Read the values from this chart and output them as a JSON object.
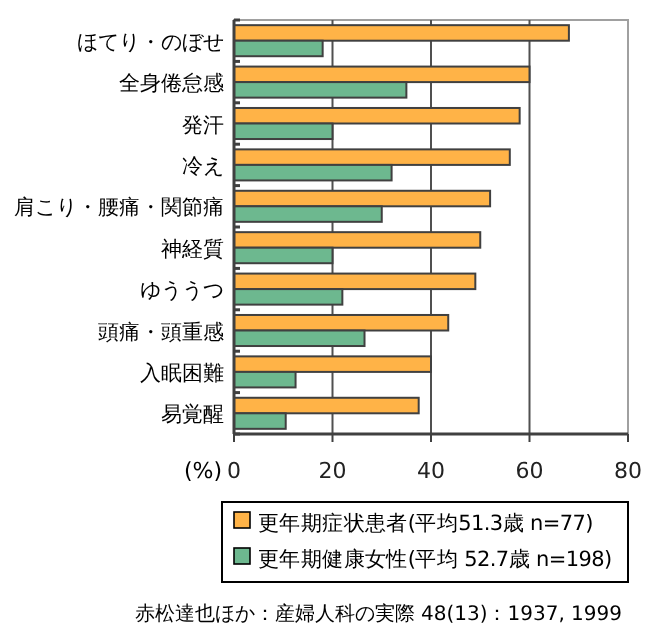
{
  "chart_data": {
    "type": "bar",
    "orientation": "horizontal",
    "categories": [
      "ほてり・のぼせ",
      "全身倦怠感",
      "発汗",
      "冷え",
      "肩こり・腰痛・関節痛",
      "神経質",
      "ゆううつ",
      "頭痛・頭重感",
      "入眠困難",
      "易覚醒"
    ],
    "series": [
      {
        "name": "更年期症状患者(平均51.3歳 n=77)",
        "color": "#ffb347",
        "values": [
          68,
          60,
          58,
          56,
          52,
          50,
          49,
          43.5,
          40,
          37.5
        ]
      },
      {
        "name": "更年期健康女性(平均 52.7歳 n=198)",
        "color": "#6db88f",
        "values": [
          18,
          35,
          20,
          32,
          30,
          20,
          22,
          26.5,
          12.5,
          10.5
        ]
      }
    ],
    "xlim": [
      0,
      80
    ],
    "xticks": [
      0,
      20,
      40,
      60,
      80
    ],
    "xlabel": "(%)",
    "grid": "x",
    "legend": "bottom",
    "annotations": [
      "赤松達也ほか：産婦人科の実際 48(13)：1937, 1999"
    ]
  }
}
